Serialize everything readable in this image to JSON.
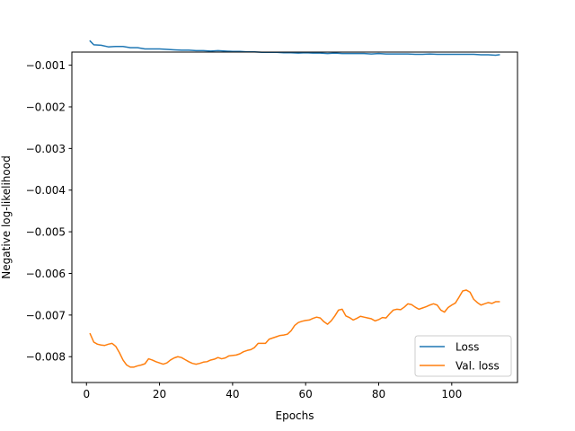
{
  "chart_data": {
    "type": "line",
    "title": "",
    "xlabel": "Epochs",
    "ylabel": "Negative log-likelihood",
    "xlim": [
      -4,
      118
    ],
    "ylim": [
      -0.00862,
      -0.000685
    ],
    "xticks": [
      0,
      20,
      40,
      60,
      80,
      100
    ],
    "xtick_labels": [
      "0",
      "20",
      "40",
      "60",
      "80",
      "100"
    ],
    "yticks": [
      -0.008,
      -0.007,
      -0.006,
      -0.005,
      -0.004,
      -0.003,
      -0.002,
      -0.001
    ],
    "ytick_labels": [
      "−0.008",
      "−0.007",
      "−0.006",
      "−0.005",
      "−0.004",
      "−0.003",
      "−0.002",
      "−0.001"
    ],
    "grid": false,
    "legend": "lower-right",
    "series": [
      {
        "name": "Loss",
        "color": "#1f77b4",
        "x": [
          1,
          2,
          4,
          6,
          8,
          10,
          12,
          14,
          16,
          18,
          20,
          22,
          24,
          26,
          28,
          30,
          32,
          34,
          36,
          38,
          40,
          42,
          44,
          46,
          48,
          50,
          52,
          54,
          56,
          58,
          60,
          62,
          64,
          66,
          68,
          70,
          72,
          74,
          76,
          78,
          80,
          82,
          84,
          86,
          88,
          90,
          92,
          94,
          96,
          98,
          100,
          102,
          104,
          106,
          108,
          110,
          112,
          113
        ],
        "y": [
          -0.00042,
          -0.00051,
          -0.00052,
          -0.00056,
          -0.00055,
          -0.00055,
          -0.00058,
          -0.00058,
          -0.00061,
          -0.00061,
          -0.00061,
          -0.00062,
          -0.00063,
          -0.00064,
          -0.00064,
          -0.00065,
          -0.00065,
          -0.00066,
          -0.00065,
          -0.00066,
          -0.00067,
          -0.00067,
          -0.00068,
          -0.00068,
          -0.00069,
          -0.00069,
          -0.00069,
          -0.0007,
          -0.0007,
          -0.00071,
          -0.0007,
          -0.00071,
          -0.00071,
          -0.00072,
          -0.00071,
          -0.00072,
          -0.00072,
          -0.00072,
          -0.00072,
          -0.00073,
          -0.00072,
          -0.00073,
          -0.00073,
          -0.00073,
          -0.00073,
          -0.00074,
          -0.00074,
          -0.00073,
          -0.00074,
          -0.00074,
          -0.00074,
          -0.00074,
          -0.00074,
          -0.00074,
          -0.00075,
          -0.00075,
          -0.00076,
          -0.00075
        ]
      },
      {
        "name": "Val. loss",
        "color": "#ff7f0e",
        "x": [
          1,
          2,
          3,
          4,
          5,
          6,
          7,
          8,
          9,
          10,
          11,
          12,
          13,
          14,
          15,
          16,
          17,
          18,
          19,
          20,
          21,
          22,
          23,
          24,
          25,
          26,
          27,
          28,
          29,
          30,
          31,
          32,
          33,
          34,
          35,
          36,
          37,
          38,
          39,
          40,
          41,
          42,
          43,
          44,
          45,
          46,
          47,
          48,
          49,
          50,
          51,
          52,
          53,
          54,
          55,
          56,
          57,
          58,
          59,
          60,
          61,
          62,
          63,
          64,
          65,
          66,
          67,
          68,
          69,
          70,
          71,
          72,
          73,
          74,
          75,
          76,
          77,
          78,
          79,
          80,
          81,
          82,
          83,
          84,
          85,
          86,
          87,
          88,
          89,
          90,
          91,
          92,
          93,
          94,
          95,
          96,
          97,
          98,
          99,
          100,
          101,
          102,
          103,
          104,
          105,
          106,
          107,
          108,
          109,
          110,
          111,
          112,
          113
        ],
        "y": [
          -0.00745,
          -0.00765,
          -0.0077,
          -0.00772,
          -0.00773,
          -0.0077,
          -0.00768,
          -0.00775,
          -0.0079,
          -0.00808,
          -0.0082,
          -0.00825,
          -0.00825,
          -0.00822,
          -0.0082,
          -0.00817,
          -0.00805,
          -0.00808,
          -0.00812,
          -0.00815,
          -0.00818,
          -0.00815,
          -0.00808,
          -0.00803,
          -0.008,
          -0.00802,
          -0.00807,
          -0.00812,
          -0.00816,
          -0.00818,
          -0.00816,
          -0.00813,
          -0.00812,
          -0.00808,
          -0.00806,
          -0.00802,
          -0.00805,
          -0.00803,
          -0.00798,
          -0.00797,
          -0.00796,
          -0.00793,
          -0.00788,
          -0.00785,
          -0.00783,
          -0.00778,
          -0.00768,
          -0.00768,
          -0.00768,
          -0.00758,
          -0.00755,
          -0.00752,
          -0.00749,
          -0.00748,
          -0.00746,
          -0.00738,
          -0.00725,
          -0.00718,
          -0.00715,
          -0.00713,
          -0.00712,
          -0.00708,
          -0.00705,
          -0.00707,
          -0.00716,
          -0.00722,
          -0.00714,
          -0.00702,
          -0.00688,
          -0.00686,
          -0.00702,
          -0.00706,
          -0.00712,
          -0.00708,
          -0.00703,
          -0.00705,
          -0.00707,
          -0.00709,
          -0.00714,
          -0.00711,
          -0.00706,
          -0.00707,
          -0.00697,
          -0.00688,
          -0.00686,
          -0.00687,
          -0.00681,
          -0.00673,
          -0.00675,
          -0.00681,
          -0.00686,
          -0.00683,
          -0.0068,
          -0.00676,
          -0.00673,
          -0.00676,
          -0.00688,
          -0.00693,
          -0.00682,
          -0.00676,
          -0.00671,
          -0.00657,
          -0.00642,
          -0.0064,
          -0.00645,
          -0.00662,
          -0.0067,
          -0.00676,
          -0.00673,
          -0.0067,
          -0.00672,
          -0.00668,
          -0.00668
        ]
      }
    ]
  }
}
